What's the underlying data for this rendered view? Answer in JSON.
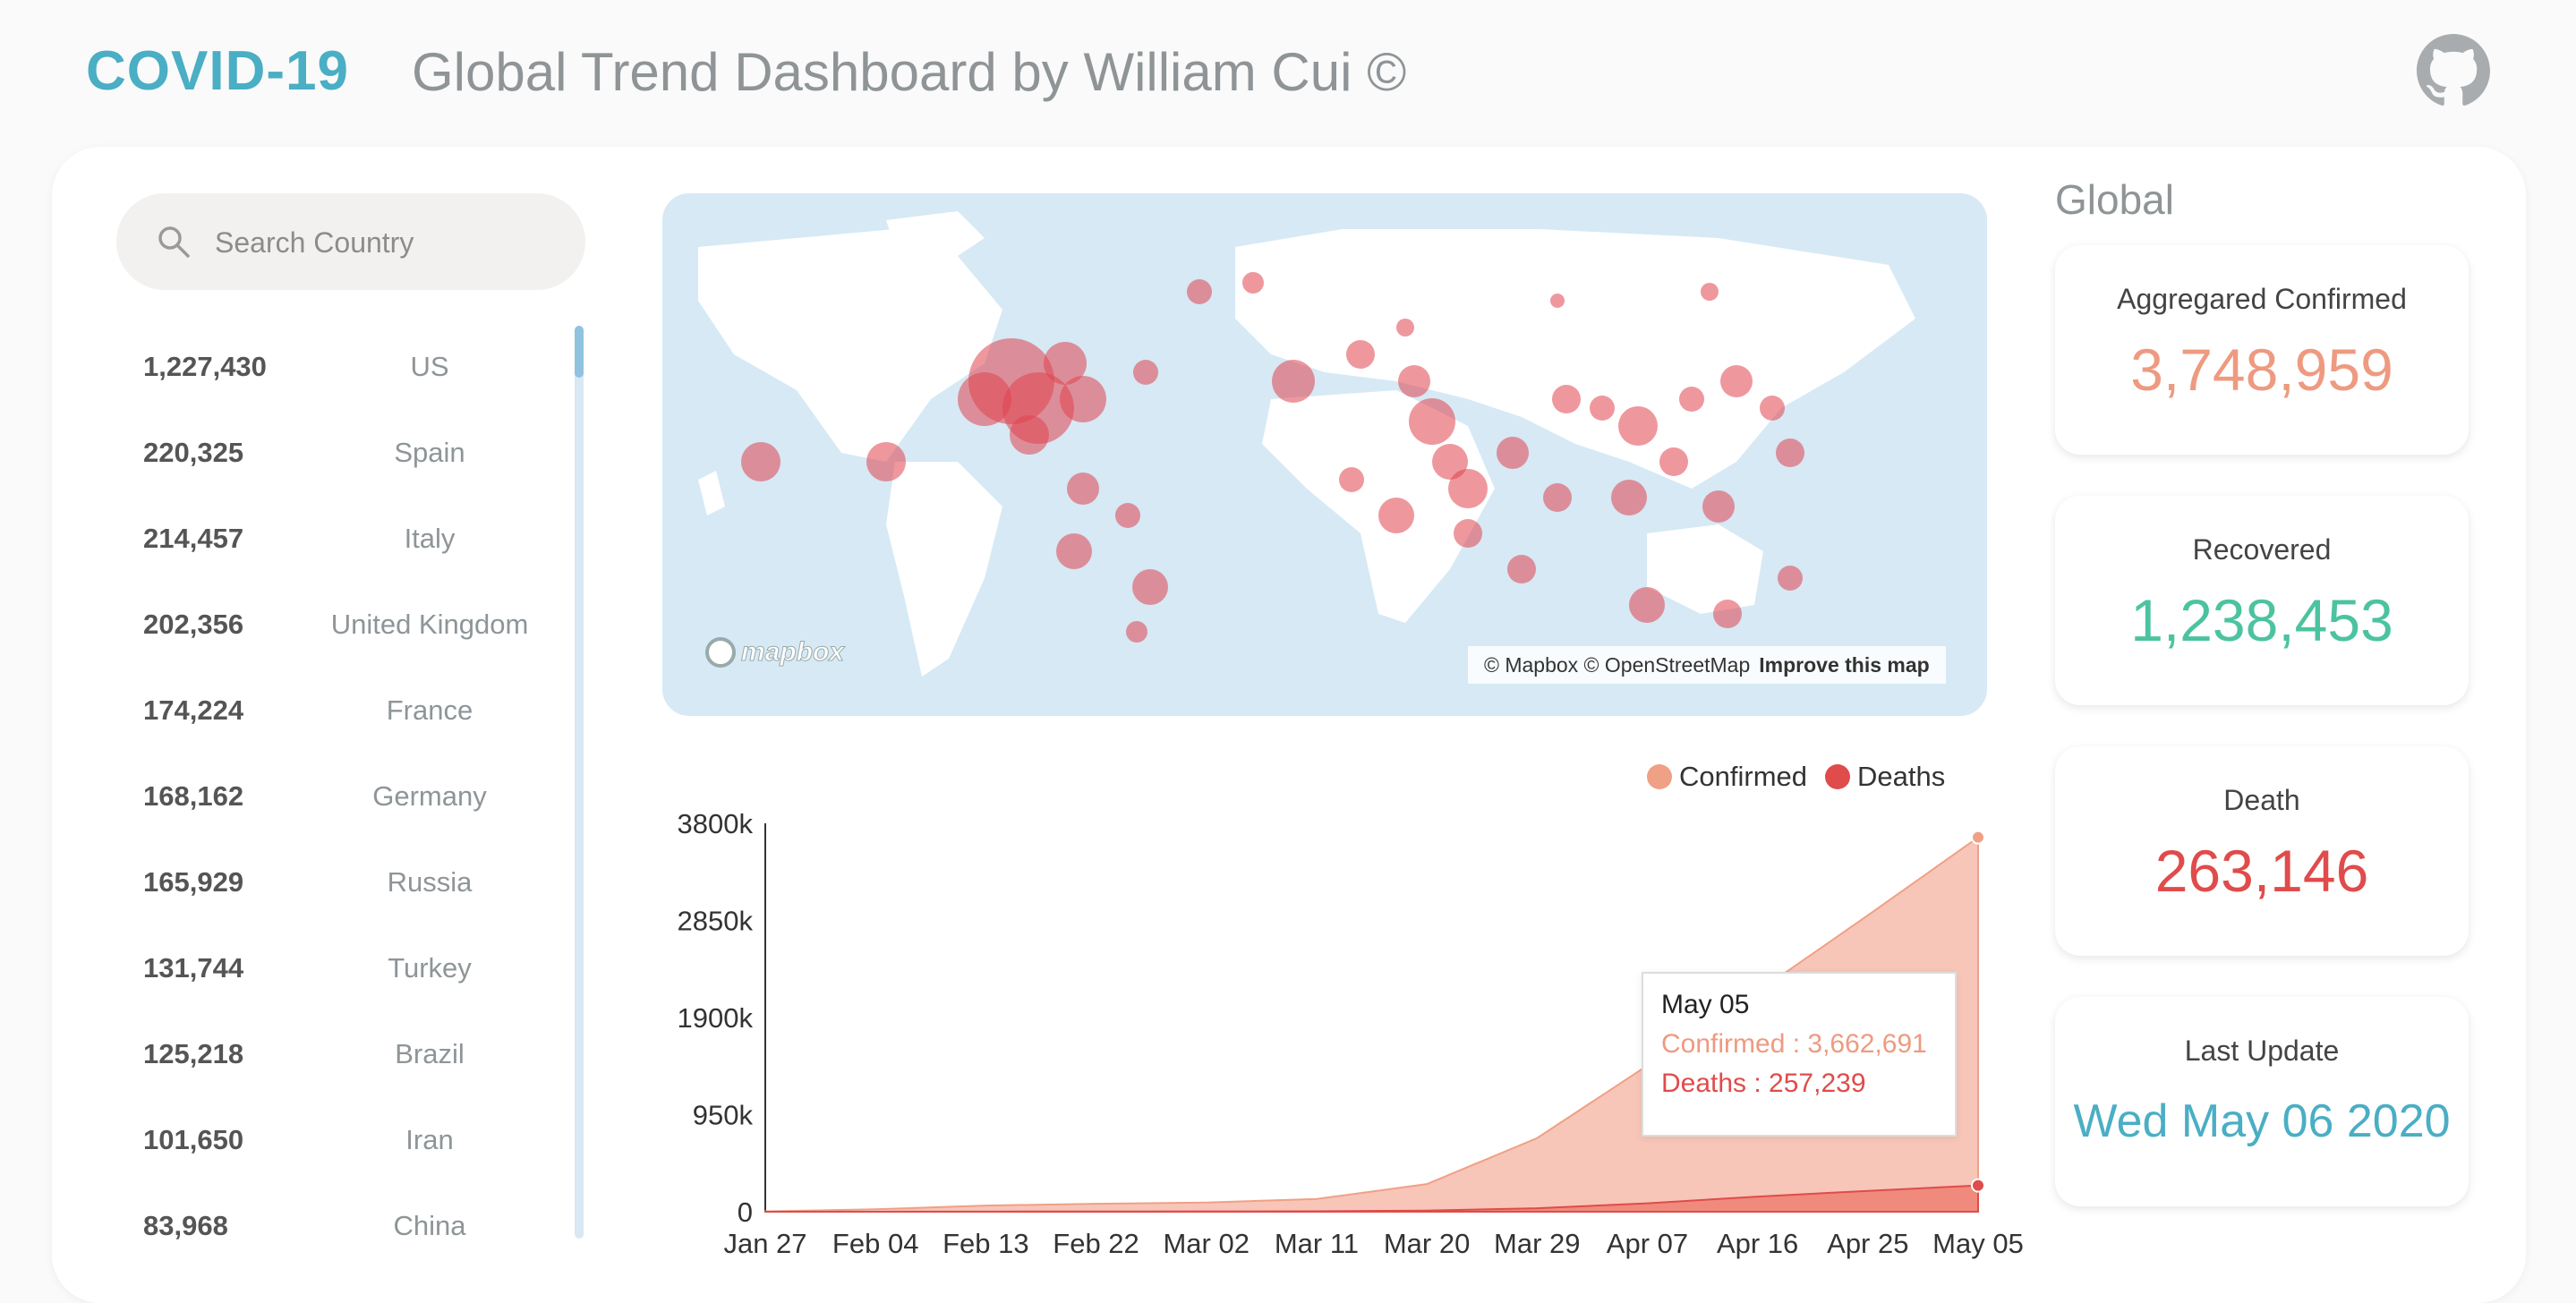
{
  "header": {
    "brand": "COVID-19",
    "subtitle": "Global Trend Dashboard by William Cui ©",
    "icon": "github-icon"
  },
  "search": {
    "placeholder": "Search Country",
    "icon": "search-icon"
  },
  "countries": [
    {
      "value": "1,227,430",
      "name": "US"
    },
    {
      "value": "220,325",
      "name": "Spain"
    },
    {
      "value": "214,457",
      "name": "Italy"
    },
    {
      "value": "202,356",
      "name": "United Kingdom"
    },
    {
      "value": "174,224",
      "name": "France"
    },
    {
      "value": "168,162",
      "name": "Germany"
    },
    {
      "value": "165,929",
      "name": "Russia"
    },
    {
      "value": "131,744",
      "name": "Turkey"
    },
    {
      "value": "125,218",
      "name": "Brazil"
    },
    {
      "value": "101,650",
      "name": "Iran"
    },
    {
      "value": "83,968",
      "name": "China"
    }
  ],
  "map": {
    "logo": "mapbox",
    "attribution": "© Mapbox © OpenStreetMap",
    "improve": "Improve this map",
    "colors": {
      "water": "#d6e9f5",
      "land": "#ffffff",
      "bubble": "#e0444f"
    }
  },
  "legend": [
    {
      "label": "Confirmed",
      "color": "#f0a085"
    },
    {
      "label": "Deaths",
      "color": "#e04b4b"
    }
  ],
  "chart_data": {
    "type": "area",
    "x": [
      "Jan 27",
      "Feb 04",
      "Feb 13",
      "Feb 22",
      "Mar 02",
      "Mar 11",
      "Mar 20",
      "Mar 29",
      "Apr 07",
      "Apr 16",
      "Apr 25",
      "May 05"
    ],
    "series": [
      {
        "name": "Confirmed",
        "color": "#f0a085",
        "values": [
          3000,
          24000,
          60000,
          78000,
          90000,
          125000,
          270000,
          720000,
          1430000,
          2150000,
          2900000,
          3662691
        ]
      },
      {
        "name": "Deaths",
        "color": "#e04b4b",
        "values": [
          80,
          500,
          1400,
          2400,
          3100,
          4600,
          11000,
          34000,
          82000,
          148000,
          204000,
          257239
        ]
      }
    ],
    "yticks": [
      "0",
      "950k",
      "1900k",
      "2850k",
      "3800k"
    ],
    "ytick_values": [
      0,
      950000,
      1900000,
      2850000,
      3800000
    ],
    "ylim": [
      0,
      3800000
    ],
    "legend_position": "top-right"
  },
  "tooltip": {
    "date": "May 05",
    "confirmed": "Confirmed : 3,662,691",
    "deaths": "Deaths : 257,239"
  },
  "global": {
    "title": "Global",
    "confirmed": {
      "label": "Aggregared Confirmed",
      "value": "3,748,959",
      "color": "#ee9a80"
    },
    "recovered": {
      "label": "Recovered",
      "value": "1,238,453",
      "color": "#4cc3a0"
    },
    "death": {
      "label": "Death",
      "value": "263,146",
      "color": "#e04b4b"
    },
    "last_update": {
      "label": "Last Update",
      "value": "Wed May 06 2020",
      "color": "#4aaec4"
    }
  }
}
